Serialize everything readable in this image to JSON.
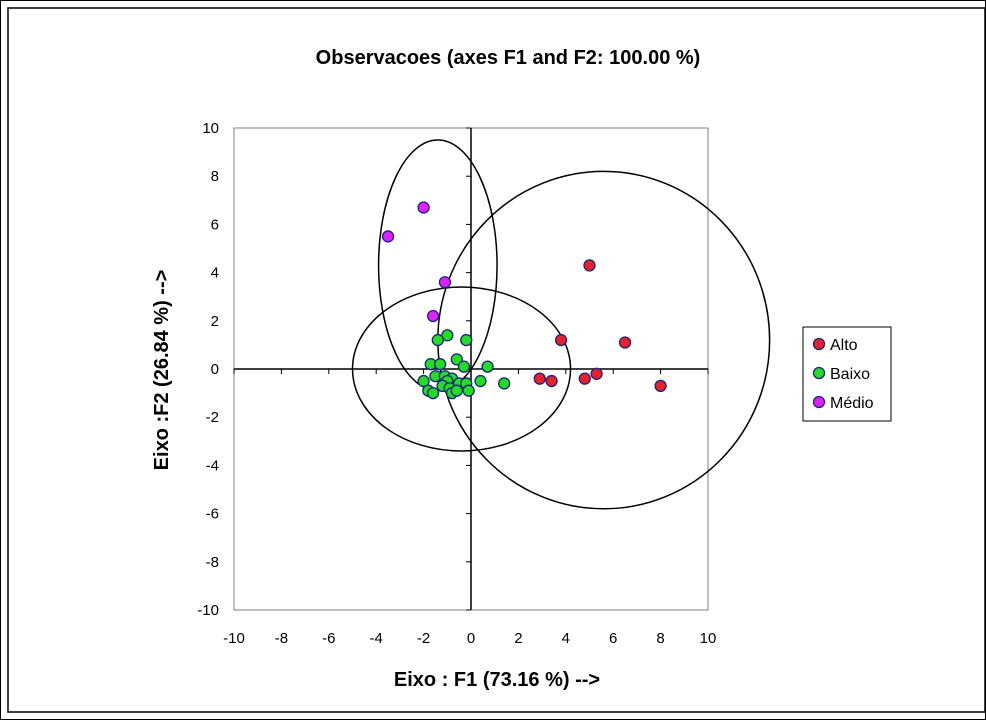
{
  "chart_data": {
    "type": "scatter",
    "title": "Observacoes (axes F1 and F2: 100.00 %)",
    "xlabel": "Eixo : F1 (73.16 %) -->",
    "ylabel": "Eixo :F2 (26.84 %) -->",
    "xlim": [
      -10,
      10
    ],
    "ylim": [
      -10,
      10
    ],
    "x_ticks": [
      -10,
      -8,
      -6,
      -4,
      -2,
      0,
      2,
      4,
      6,
      8,
      10
    ],
    "y_ticks": [
      -10,
      -8,
      -6,
      -4,
      -2,
      0,
      2,
      4,
      6,
      8,
      10
    ],
    "grid": false,
    "legend_position": "right",
    "series": [
      {
        "name": "Alto",
        "color": "#e8202a",
        "points": [
          [
            5.0,
            4.3
          ],
          [
            3.8,
            1.2
          ],
          [
            6.5,
            1.1
          ],
          [
            2.9,
            -0.4
          ],
          [
            3.4,
            -0.5
          ],
          [
            4.8,
            -0.4
          ],
          [
            5.3,
            -0.2
          ],
          [
            8.0,
            -0.7
          ]
        ]
      },
      {
        "name": "Baixo",
        "color": "#22dd22",
        "points": [
          [
            -1.0,
            1.4
          ],
          [
            -1.4,
            1.2
          ],
          [
            -0.2,
            1.2
          ],
          [
            -1.7,
            0.2
          ],
          [
            -1.3,
            0.2
          ],
          [
            -0.6,
            0.4
          ],
          [
            -0.3,
            0.1
          ],
          [
            0.7,
            0.1
          ],
          [
            -1.5,
            -0.3
          ],
          [
            -1.1,
            -0.3
          ],
          [
            -0.8,
            -0.4
          ],
          [
            -1.0,
            -0.5
          ],
          [
            -0.5,
            -0.6
          ],
          [
            -0.2,
            -0.6
          ],
          [
            0.4,
            -0.5
          ],
          [
            1.4,
            -0.6
          ],
          [
            -2.0,
            -0.5
          ],
          [
            -1.8,
            -0.9
          ],
          [
            -1.6,
            -1.0
          ],
          [
            -1.2,
            -0.7
          ],
          [
            -0.9,
            -0.8
          ],
          [
            -0.8,
            -1.0
          ],
          [
            -0.6,
            -0.9
          ],
          [
            -0.1,
            -0.9
          ]
        ]
      },
      {
        "name": "Médio",
        "color": "#e020ff",
        "points": [
          [
            -2.0,
            6.7
          ],
          [
            -3.5,
            5.5
          ],
          [
            -1.1,
            3.6
          ],
          [
            -1.6,
            2.2
          ]
        ]
      }
    ],
    "ellipses": [
      {
        "cx": -1.4,
        "cy": 4.3,
        "rx": 2.5,
        "ry": 5.2
      },
      {
        "cx": -0.4,
        "cy": 0.0,
        "rx": 4.6,
        "ry": 3.4
      },
      {
        "cx": 5.6,
        "cy": 1.2,
        "rx": 7.0,
        "ry": 7.0
      }
    ]
  }
}
